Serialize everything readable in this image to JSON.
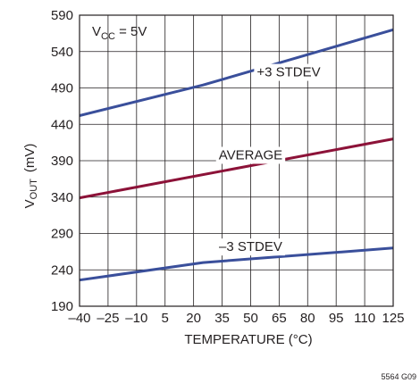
{
  "chart_data": {
    "type": "line",
    "title": "",
    "xlabel": "TEMPERATURE (°C)",
    "ylabel": {
      "main": "V",
      "sub": "OUT",
      "unit": "(mV)"
    },
    "x_ticks": [
      -40,
      -25,
      -10,
      5,
      20,
      35,
      50,
      65,
      80,
      95,
      110,
      125
    ],
    "x_tick_labels": [
      "–40",
      "–25",
      "–10",
      "5",
      "20",
      "35",
      "50",
      "65",
      "80",
      "95",
      "110",
      "125"
    ],
    "y_ticks": [
      190,
      240,
      290,
      340,
      390,
      440,
      490,
      540,
      590
    ],
    "xlim": [
      -40,
      125
    ],
    "ylim": [
      190,
      590
    ],
    "grid": true,
    "series": [
      {
        "name": "+3 STDEV",
        "color": "#3a4f9b",
        "x": [
          -40,
          25,
          125
        ],
        "y": [
          452,
          494,
          570
        ]
      },
      {
        "name": "AVERAGE",
        "color": "#8c1238",
        "x": [
          -40,
          125
        ],
        "y": [
          339,
          420
        ]
      },
      {
        "name": "–3 STDEV",
        "color": "#3a4f9b",
        "x": [
          -40,
          25,
          125
        ],
        "y": [
          226,
          250,
          270
        ]
      }
    ],
    "condition": {
      "main": "V",
      "sub": "CC",
      "rest": " = 5V"
    },
    "figure_code": "5564 G09"
  }
}
